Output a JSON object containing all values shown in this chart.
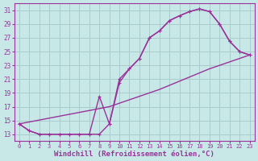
{
  "xlabel": "Windchill (Refroidissement éolien,°C)",
  "bg_color": "#c8e8e8",
  "grid_color": "#aacccc",
  "line_color": "#993399",
  "xlim": [
    -0.5,
    23.5
  ],
  "ylim": [
    12,
    32
  ],
  "xticks": [
    0,
    1,
    2,
    3,
    4,
    5,
    6,
    7,
    8,
    9,
    10,
    11,
    12,
    13,
    14,
    15,
    16,
    17,
    18,
    19,
    20,
    21,
    22,
    23
  ],
  "yticks": [
    13,
    15,
    17,
    19,
    21,
    23,
    25,
    27,
    29,
    31
  ],
  "line1_x": [
    0,
    1,
    2,
    3,
    4,
    5,
    6,
    7,
    8,
    9,
    10,
    11,
    12,
    13,
    14,
    15,
    16,
    17,
    18,
    19,
    20,
    21,
    22,
    23
  ],
  "line1_y": [
    14.5,
    13.5,
    13.0,
    13.0,
    13.0,
    13.0,
    13.0,
    13.0,
    18.5,
    14.5,
    21.0,
    22.5,
    24.0,
    27.0,
    28.0,
    29.5,
    30.2,
    30.8,
    31.2,
    30.8,
    29.0,
    26.5,
    25.0,
    24.5
  ],
  "line2_x": [
    0,
    1,
    2,
    3,
    4,
    5,
    6,
    7,
    8,
    9,
    10,
    11,
    12,
    13,
    14,
    15,
    16,
    17,
    18,
    19,
    20,
    21,
    22,
    23
  ],
  "line2_y": [
    14.5,
    13.5,
    13.0,
    13.0,
    13.0,
    13.0,
    13.0,
    13.0,
    13.0,
    14.5,
    20.5,
    22.5,
    24.0,
    27.0,
    28.0,
    29.5,
    30.2,
    30.8,
    31.2,
    30.8,
    29.0,
    26.5,
    25.0,
    24.5
  ],
  "line3_x": [
    0,
    9,
    14,
    19,
    23
  ],
  "line3_y": [
    14.5,
    17.0,
    19.5,
    22.5,
    24.5
  ],
  "markersize": 3.5,
  "linewidth": 1.0
}
